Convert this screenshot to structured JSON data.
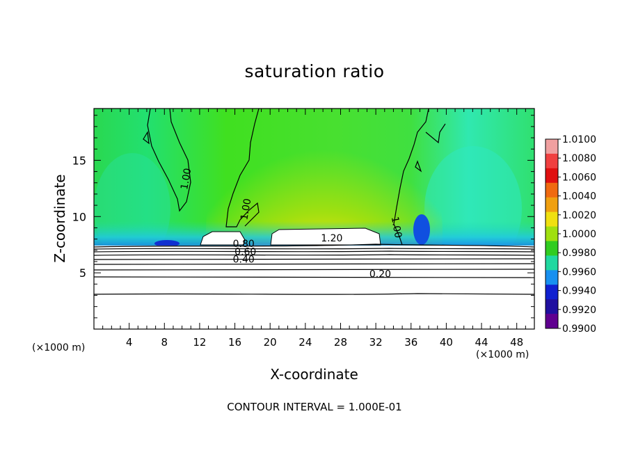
{
  "chart_data": {
    "type": "heatmap",
    "title": "saturation ratio",
    "xlabel": "X-coordinate",
    "ylabel": "Z-coordinate",
    "x_unit_left": "(×1000 m)",
    "x_unit_right": "(×1000 m)",
    "xlim": [
      0,
      50
    ],
    "ylim": [
      0,
      19.6
    ],
    "xticks": [
      "4",
      "8",
      "12",
      "16",
      "20",
      "24",
      "28",
      "32",
      "36",
      "40",
      "44",
      "48"
    ],
    "yticks": [
      "5",
      "10",
      "15"
    ],
    "colorbar": {
      "levels": [
        "1.0100",
        "1.0080",
        "1.0060",
        "1.0040",
        "1.0020",
        "1.0000",
        "0.9980",
        "0.9960",
        "0.9940",
        "0.9920",
        "0.9900"
      ],
      "colors": [
        "#f0a0a0",
        "#f04040",
        "#e01010",
        "#f06a10",
        "#f0a010",
        "#f0e010",
        "#a0e010",
        "#30cc20",
        "#20d8a0",
        "#1890f0",
        "#1020d0",
        "#2010a0",
        "#600090"
      ]
    },
    "contour_labels": [
      {
        "text": "1.00",
        "x": 10.8,
        "y": 13.3
      },
      {
        "text": "1.00",
        "x": 17.6,
        "y": 10.6
      },
      {
        "text": "1.00",
        "x": 34.0,
        "y": 9.0
      },
      {
        "text": "1.20",
        "x": 27.0,
        "y": 7.8
      },
      {
        "text": "0.80",
        "x": 17.0,
        "y": 7.3
      },
      {
        "text": "0.60",
        "x": 17.2,
        "y": 6.6
      },
      {
        "text": "0.40",
        "x": 17.0,
        "y": 5.9
      },
      {
        "text": "0.20",
        "x": 32.5,
        "y": 4.6
      }
    ],
    "contour_interval_note": "CONTOUR INTERVAL = 1.000E-01"
  }
}
